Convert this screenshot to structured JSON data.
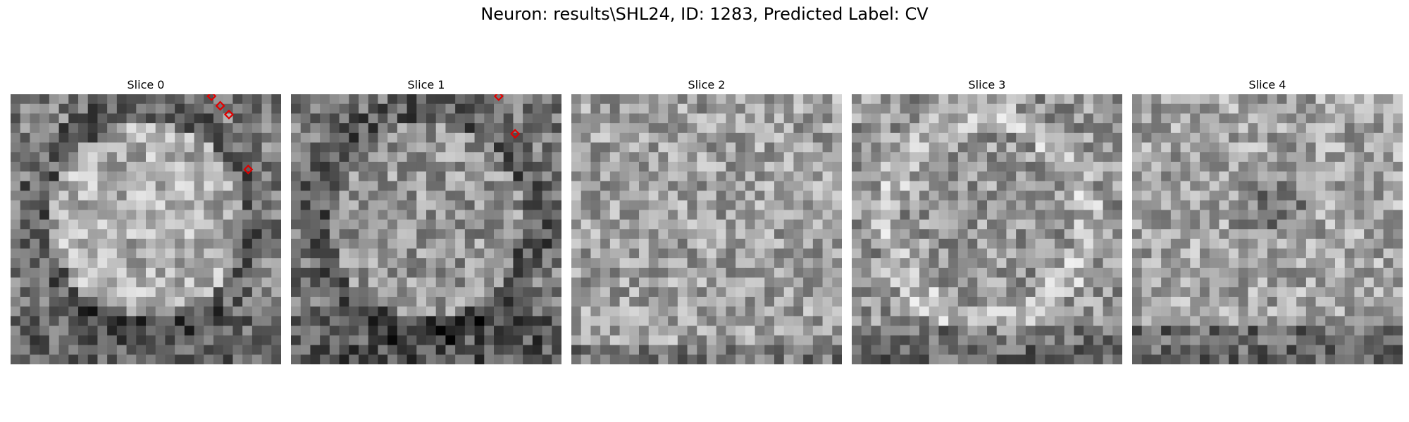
{
  "figure": {
    "title": "Neuron: results\\SHL24, ID: 1283, Predicted Label: CV"
  },
  "marker_color": "#e00000",
  "image_grid": {
    "columns": 28,
    "rows": 28
  },
  "panels": [
    {
      "title": "Slice 0",
      "seed": 11,
      "structure": "bright-disc",
      "markers": [
        [
          20.8,
          0.2
        ],
        [
          21.7,
          1.2
        ],
        [
          22.6,
          2.1
        ],
        [
          24.6,
          7.8
        ]
      ]
    },
    {
      "title": "Slice 1",
      "seed": 23,
      "structure": "bright-disc-faint",
      "markers": [
        [
          21.5,
          0.2
        ],
        [
          23.2,
          4.1
        ]
      ]
    },
    {
      "title": "Slice 2",
      "seed": 37,
      "structure": "noisy",
      "markers": []
    },
    {
      "title": "Slice 3",
      "seed": 41,
      "structure": "ring",
      "markers": []
    },
    {
      "title": "Slice 4",
      "seed": 59,
      "structure": "noisy-dark-bottom",
      "markers": []
    }
  ]
}
